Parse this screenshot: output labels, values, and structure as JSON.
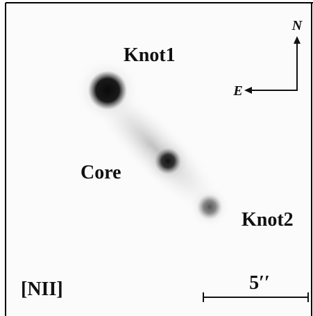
{
  "labels": {
    "knot1": "Knot1",
    "core": "Core",
    "knot2": "Knot2"
  },
  "filter": "[NII]",
  "scale_bar": "5′′",
  "compass": {
    "north": "N",
    "east": "E"
  }
}
